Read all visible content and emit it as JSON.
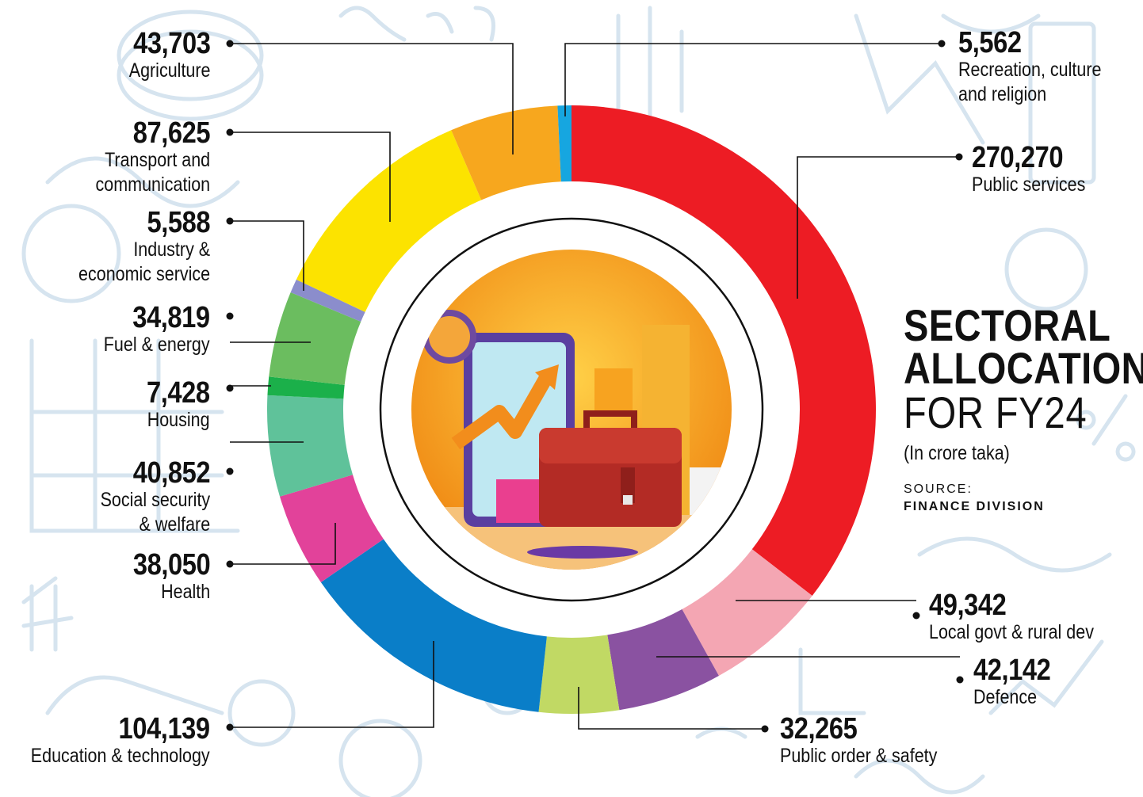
{
  "title": {
    "line1": "SECTORAL",
    "line2": "ALLOCATION",
    "line3": "FOR FY24",
    "units": "(In crore taka)",
    "source_label": "SOURCE:",
    "source_name": "FINANCE DIVISION"
  },
  "chart_data": {
    "type": "pie",
    "style": "donut",
    "start": "top, clockwise",
    "units": "crore taka",
    "slices": [
      {
        "label": "Public services",
        "value": 270270,
        "display": "270,270",
        "color": "#ed1c24"
      },
      {
        "label": "Local govt & rural dev",
        "value": 49342,
        "display": "49,342",
        "color": "#f4a6b3"
      },
      {
        "label": "Defence",
        "value": 42142,
        "display": "42,142",
        "color": "#8a52a1"
      },
      {
        "label": "Public order & safety",
        "value": 32265,
        "display": "32,265",
        "color": "#c1d964"
      },
      {
        "label": "Education & technology",
        "value": 104139,
        "display": "104,139",
        "color": "#0a7ec8"
      },
      {
        "label": "Health",
        "value": 38050,
        "display": "38,050",
        "color": "#e2429a"
      },
      {
        "label": "Social security\n& welfare",
        "value": 40852,
        "display": "40,852",
        "color": "#5fc29a"
      },
      {
        "label": "Housing",
        "value": 7428,
        "display": "7,428",
        "color": "#1bb04a"
      },
      {
        "label": "Fuel & energy",
        "value": 34819,
        "display": "34,819",
        "color": "#6bbd5f"
      },
      {
        "label": "Industry &\neconomic service",
        "value": 5588,
        "display": "5,588",
        "color": "#8b8dcc"
      },
      {
        "label": "Transport and\ncommunication",
        "value": 87625,
        "display": "87,625",
        "color": "#fce300"
      },
      {
        "label": "Agriculture",
        "value": 43703,
        "display": "43,703",
        "color": "#f7a71e"
      },
      {
        "label": "Recreation, culture\nand religion",
        "value": 5562,
        "display": "5,562",
        "color": "#16a6e0"
      }
    ]
  }
}
